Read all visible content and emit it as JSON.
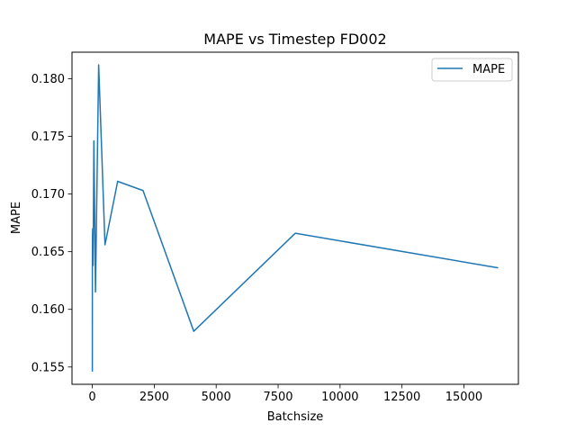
{
  "chart_data": {
    "type": "line",
    "title": "MAPE vs Timestep FD002",
    "xlabel": "Batchsize",
    "ylabel": "MAPE",
    "xlim": [
      -820,
      17200
    ],
    "ylim": [
      0.1535,
      0.1823
    ],
    "xticks": [
      0,
      2500,
      5000,
      7500,
      10000,
      12500,
      15000
    ],
    "xtick_labels": [
      "0",
      "2500",
      "5000",
      "7500",
      "10000",
      "12500",
      "15000"
    ],
    "yticks": [
      0.155,
      0.16,
      0.165,
      0.17,
      0.175,
      0.18
    ],
    "ytick_labels": [
      "0.155",
      "0.160",
      "0.165",
      "0.170",
      "0.175",
      "0.180"
    ],
    "grid": false,
    "legend_position": "top-right",
    "series": [
      {
        "name": "MAPE",
        "color": "#1f77b4",
        "x": [
          1,
          2,
          4,
          8,
          16,
          32,
          64,
          128,
          256,
          512,
          1024,
          2048,
          4096,
          8192,
          16384
        ],
        "y": [
          0.1546,
          0.1634,
          0.1646,
          0.1665,
          0.167,
          0.1638,
          0.1746,
          0.1615,
          0.1812,
          0.1656,
          0.1711,
          0.1703,
          0.1581,
          0.1666,
          0.1636
        ]
      }
    ]
  }
}
